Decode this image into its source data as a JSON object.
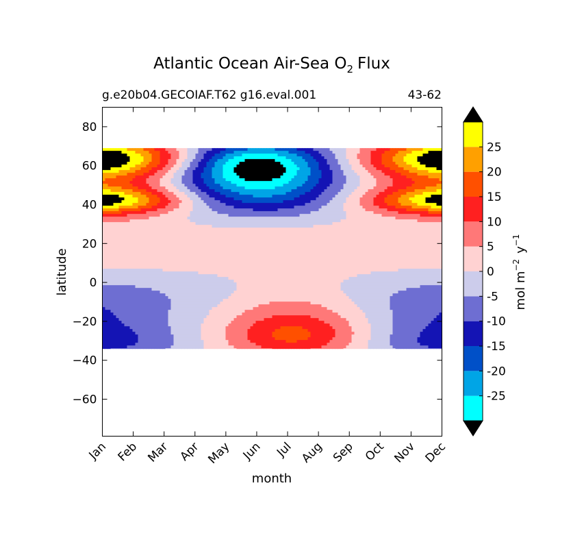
{
  "chart_data": {
    "type": "heatmap",
    "title": "Atlantic Ocean Air-Sea O",
    "title_subscript": "2",
    "title_suffix": "Flux",
    "subtitle_left": "g.e20b04.GECOIAF.T62 g16.eval.001",
    "subtitle_right": "43-62",
    "xlabel": "month",
    "ylabel": "latitude",
    "x_categories": [
      "Jan",
      "Feb",
      "Mar",
      "Apr",
      "May",
      "Jun",
      "Jul",
      "Aug",
      "Sep",
      "Oct",
      "Nov",
      "Dec"
    ],
    "y_ticks": [
      80,
      60,
      40,
      20,
      0,
      -20,
      -40,
      -60
    ],
    "ylim": [
      -79,
      90
    ],
    "data_lat_range": [
      -34,
      69
    ],
    "colorbar": {
      "label": "mol m",
      "label_sup1": "−2",
      "label_mid": "y",
      "label_sup2": "−1",
      "ticks": [
        "25",
        "20",
        "15",
        "10",
        "5",
        "0",
        "-5",
        "-10",
        "-15",
        "-20",
        "-25"
      ],
      "levels": [
        -30,
        -25,
        -20,
        -15,
        -10,
        -5,
        0,
        5,
        10,
        15,
        20,
        25,
        30
      ],
      "colors": [
        "#00ffff",
        "#00a5e6",
        "#0050c8",
        "#1414b4",
        "#6e6ed2",
        "#cccceb",
        "#ffd2d2",
        "#ff7878",
        "#ff2020",
        "#ff5000",
        "#ffa000",
        "#ffff00"
      ],
      "over_color": "#000000",
      "under_color": "#000000"
    }
  }
}
